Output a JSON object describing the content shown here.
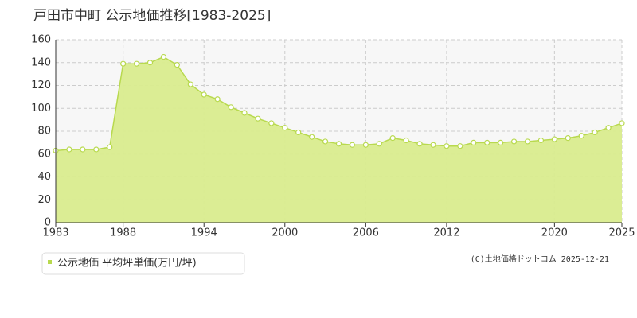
{
  "chart_data": {
    "type": "area",
    "title": "戸田市中町 公示地価推移[1983-2025]",
    "x": [
      1983,
      1984,
      1985,
      1986,
      1987,
      1988,
      1989,
      1990,
      1991,
      1992,
      1993,
      1994,
      1995,
      1996,
      1997,
      1998,
      1999,
      2000,
      2001,
      2002,
      2003,
      2004,
      2005,
      2006,
      2007,
      2008,
      2009,
      2010,
      2011,
      2012,
      2013,
      2014,
      2015,
      2016,
      2017,
      2018,
      2019,
      2020,
      2021,
      2022,
      2023,
      2024,
      2025
    ],
    "series": [
      {
        "name": "公示地価 平均坪単価(万円/坪)",
        "color": "#b8d94e",
        "values": [
          63,
          64,
          64,
          64,
          66,
          139,
          139,
          140,
          145,
          138,
          121,
          112,
          108,
          101,
          96,
          91,
          87,
          83,
          79,
          75,
          71,
          69,
          68,
          68,
          69,
          74,
          72,
          69,
          68,
          67,
          67,
          70,
          70,
          70,
          71,
          71,
          72,
          73,
          74,
          76,
          79,
          83,
          87
        ]
      }
    ],
    "xlim": [
      1983,
      2025
    ],
    "xticks": [
      1983,
      1988,
      1994,
      2000,
      2006,
      2012,
      2020,
      2025
    ],
    "ylim": [
      0,
      160
    ],
    "yticks": [
      0,
      20,
      40,
      60,
      80,
      100,
      120,
      140,
      160
    ],
    "grid": true,
    "source": "(C)土地価格ドットコム 2025-12-21"
  }
}
